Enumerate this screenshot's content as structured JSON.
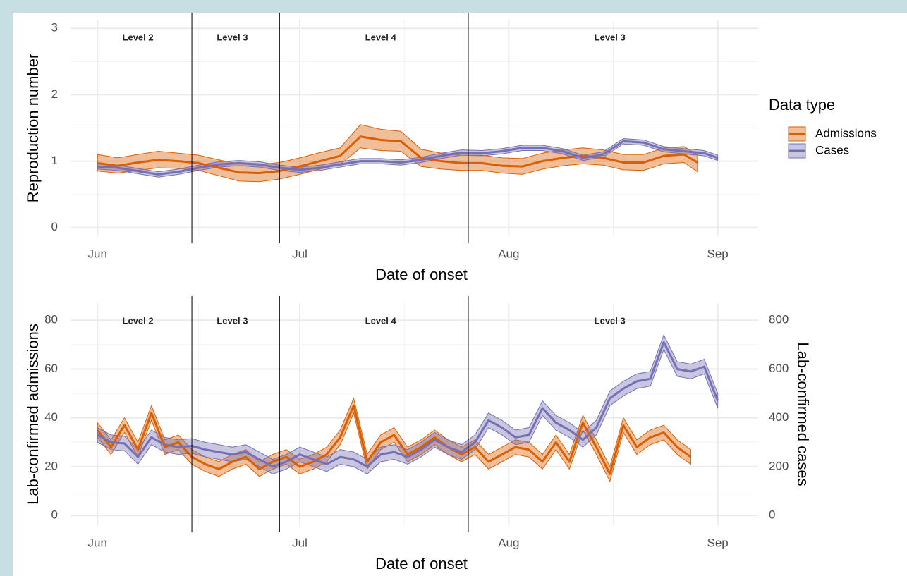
{
  "chart_data": [
    {
      "type": "line",
      "y_label": "Reproduction number",
      "x_label": "Date of onset",
      "xlim": [
        -4,
        98
      ],
      "ylim": [
        -0.13,
        3.13
      ],
      "yticks": [
        0,
        1,
        2,
        3
      ],
      "xticks": [
        {
          "value": 0,
          "label": "Jun"
        },
        {
          "value": 30,
          "label": "Jul"
        },
        {
          "value": 61,
          "label": "Aug"
        },
        {
          "value": 92,
          "label": "Sep"
        }
      ],
      "grid": true,
      "legend": "right",
      "legend_title": "Data type",
      "vlines": [
        14,
        27,
        55
      ],
      "annotations": [
        {
          "text": "Level 2",
          "x": 6
        },
        {
          "text": "Level 3",
          "x": 20
        },
        {
          "text": "Level 4",
          "x": 42
        },
        {
          "text": "Level 3",
          "x": 76
        }
      ],
      "series": [
        {
          "name": "Admissions",
          "color": "#d95f02",
          "x": [
            0,
            3,
            6,
            9,
            12,
            15,
            18,
            21,
            24,
            27,
            30,
            33,
            36,
            39,
            42,
            45,
            48,
            51,
            54,
            57,
            60,
            63,
            66,
            69,
            72,
            75,
            78,
            81,
            84,
            87,
            89
          ],
          "values": [
            0.97,
            0.93,
            0.98,
            1.02,
            1.0,
            0.97,
            0.9,
            0.83,
            0.82,
            0.85,
            0.92,
            1.0,
            1.08,
            1.37,
            1.32,
            1.3,
            1.05,
            1.0,
            0.97,
            0.97,
            0.93,
            0.92,
            1.0,
            1.05,
            1.08,
            1.05,
            0.98,
            0.98,
            1.08,
            1.1,
            0.98
          ],
          "lower": [
            0.85,
            0.82,
            0.86,
            0.9,
            0.89,
            0.86,
            0.78,
            0.7,
            0.69,
            0.73,
            0.8,
            0.88,
            0.95,
            1.2,
            1.16,
            1.15,
            0.92,
            0.88,
            0.86,
            0.86,
            0.82,
            0.8,
            0.88,
            0.93,
            0.96,
            0.94,
            0.87,
            0.86,
            0.96,
            0.98,
            0.84
          ],
          "upper": [
            1.1,
            1.05,
            1.1,
            1.15,
            1.12,
            1.09,
            1.02,
            0.96,
            0.95,
            0.98,
            1.05,
            1.13,
            1.2,
            1.55,
            1.48,
            1.45,
            1.18,
            1.12,
            1.09,
            1.09,
            1.05,
            1.04,
            1.12,
            1.17,
            1.2,
            1.17,
            1.1,
            1.1,
            1.2,
            1.22,
            1.1
          ]
        },
        {
          "name": "Cases",
          "color": "#7570b3",
          "x": [
            0,
            3,
            6,
            9,
            12,
            15,
            18,
            21,
            24,
            27,
            30,
            33,
            36,
            39,
            42,
            45,
            48,
            51,
            54,
            57,
            60,
            63,
            66,
            69,
            72,
            75,
            78,
            81,
            84,
            87,
            90,
            92
          ],
          "values": [
            0.92,
            0.9,
            0.85,
            0.8,
            0.84,
            0.9,
            0.95,
            0.97,
            0.95,
            0.9,
            0.87,
            0.9,
            0.95,
            1.0,
            1.0,
            0.98,
            1.02,
            1.08,
            1.13,
            1.12,
            1.15,
            1.2,
            1.2,
            1.15,
            1.05,
            1.1,
            1.3,
            1.28,
            1.18,
            1.15,
            1.12,
            1.05
          ],
          "lower": [
            0.88,
            0.86,
            0.81,
            0.76,
            0.8,
            0.86,
            0.91,
            0.93,
            0.91,
            0.86,
            0.83,
            0.86,
            0.91,
            0.96,
            0.96,
            0.94,
            0.98,
            1.04,
            1.09,
            1.08,
            1.11,
            1.16,
            1.16,
            1.11,
            1.01,
            1.06,
            1.26,
            1.24,
            1.14,
            1.11,
            1.08,
            1.01
          ],
          "upper": [
            0.96,
            0.94,
            0.89,
            0.84,
            0.88,
            0.94,
            0.99,
            1.01,
            0.99,
            0.94,
            0.91,
            0.94,
            0.99,
            1.04,
            1.04,
            1.02,
            1.06,
            1.12,
            1.17,
            1.16,
            1.19,
            1.24,
            1.24,
            1.19,
            1.09,
            1.14,
            1.34,
            1.32,
            1.22,
            1.19,
            1.16,
            1.09
          ]
        }
      ]
    },
    {
      "type": "line",
      "y_label": "Lab-confirmed admissions",
      "y2_label": "Lab-confirmed cases",
      "x_label": "Date of onset",
      "xlim": [
        -4,
        98
      ],
      "ylim": [
        -4,
        87
      ],
      "yticks": [
        0,
        20,
        40,
        60,
        80
      ],
      "y2lim": [
        -40,
        870
      ],
      "y2ticks": [
        0,
        200,
        400,
        600,
        800
      ],
      "xticks": [
        {
          "value": 0,
          "label": "Jun"
        },
        {
          "value": 30,
          "label": "Jul"
        },
        {
          "value": 61,
          "label": "Aug"
        },
        {
          "value": 92,
          "label": "Sep"
        }
      ],
      "grid": true,
      "vlines": [
        14,
        27,
        55
      ],
      "annotations": [
        {
          "text": "Level 2",
          "x": 6
        },
        {
          "text": "Level 3",
          "x": 20
        },
        {
          "text": "Level 4",
          "x": 42
        },
        {
          "text": "Level 3",
          "x": 76
        }
      ],
      "series": [
        {
          "color": "#d95f02",
          "x": [
            0,
            2,
            4,
            6,
            8,
            10,
            12,
            14,
            16,
            18,
            20,
            22,
            24,
            26,
            28,
            30,
            32,
            34,
            36,
            38,
            40,
            42,
            44,
            46,
            48,
            50,
            52,
            54,
            56,
            58,
            60,
            62,
            64,
            66,
            68,
            70,
            72,
            74,
            76,
            78,
            80,
            82,
            84,
            86,
            88
          ],
          "values": [
            35,
            28,
            37,
            27,
            42,
            28,
            30,
            24,
            21,
            19,
            22,
            24,
            19,
            22,
            24,
            20,
            22,
            25,
            32,
            45,
            22,
            30,
            33,
            25,
            28,
            32,
            28,
            25,
            28,
            22,
            25,
            28,
            27,
            22,
            30,
            22,
            38,
            28,
            17,
            37,
            28,
            32,
            34,
            28,
            24
          ],
          "lower": [
            32,
            25,
            34,
            24,
            39,
            25,
            27,
            21,
            18,
            16,
            19,
            21,
            16,
            19,
            21,
            17,
            19,
            22,
            29,
            42,
            19,
            27,
            30,
            22,
            25,
            29,
            25,
            22,
            25,
            19,
            22,
            25,
            24,
            19,
            27,
            19,
            35,
            25,
            14,
            34,
            25,
            29,
            31,
            25,
            21
          ],
          "upper": [
            38,
            31,
            40,
            30,
            45,
            31,
            33,
            27,
            24,
            22,
            25,
            27,
            22,
            25,
            27,
            23,
            25,
            28,
            35,
            48,
            25,
            33,
            36,
            28,
            31,
            35,
            31,
            28,
            31,
            25,
            28,
            31,
            30,
            25,
            33,
            25,
            41,
            31,
            20,
            40,
            31,
            35,
            37,
            31,
            27
          ]
        },
        {
          "color": "#7570b3",
          "axis": "y2",
          "x": [
            0,
            2,
            4,
            6,
            8,
            10,
            12,
            14,
            16,
            18,
            20,
            22,
            24,
            26,
            28,
            30,
            32,
            34,
            36,
            38,
            40,
            42,
            44,
            46,
            48,
            50,
            52,
            54,
            56,
            58,
            60,
            62,
            64,
            66,
            68,
            70,
            72,
            74,
            76,
            78,
            80,
            82,
            84,
            86,
            88,
            90,
            92
          ],
          "values": [
            330,
            300,
            295,
            240,
            320,
            290,
            280,
            285,
            270,
            260,
            250,
            260,
            230,
            200,
            220,
            250,
            230,
            210,
            240,
            230,
            200,
            250,
            260,
            240,
            270,
            310,
            280,
            260,
            300,
            390,
            360,
            320,
            330,
            440,
            380,
            350,
            310,
            360,
            480,
            520,
            550,
            560,
            710,
            600,
            590,
            610,
            470
          ],
          "lower": [
            300,
            270,
            265,
            210,
            290,
            260,
            250,
            255,
            240,
            230,
            220,
            230,
            200,
            170,
            190,
            220,
            200,
            180,
            210,
            200,
            170,
            220,
            230,
            210,
            240,
            280,
            250,
            230,
            270,
            360,
            330,
            290,
            300,
            410,
            350,
            320,
            280,
            330,
            450,
            490,
            520,
            530,
            680,
            570,
            560,
            580,
            440
          ],
          "upper": [
            360,
            330,
            325,
            270,
            350,
            320,
            310,
            315,
            300,
            290,
            280,
            290,
            260,
            230,
            250,
            280,
            260,
            240,
            270,
            260,
            230,
            280,
            290,
            270,
            300,
            340,
            310,
            290,
            330,
            420,
            390,
            350,
            360,
            470,
            410,
            380,
            340,
            390,
            510,
            550,
            580,
            590,
            740,
            630,
            620,
            640,
            500
          ]
        }
      ]
    }
  ]
}
